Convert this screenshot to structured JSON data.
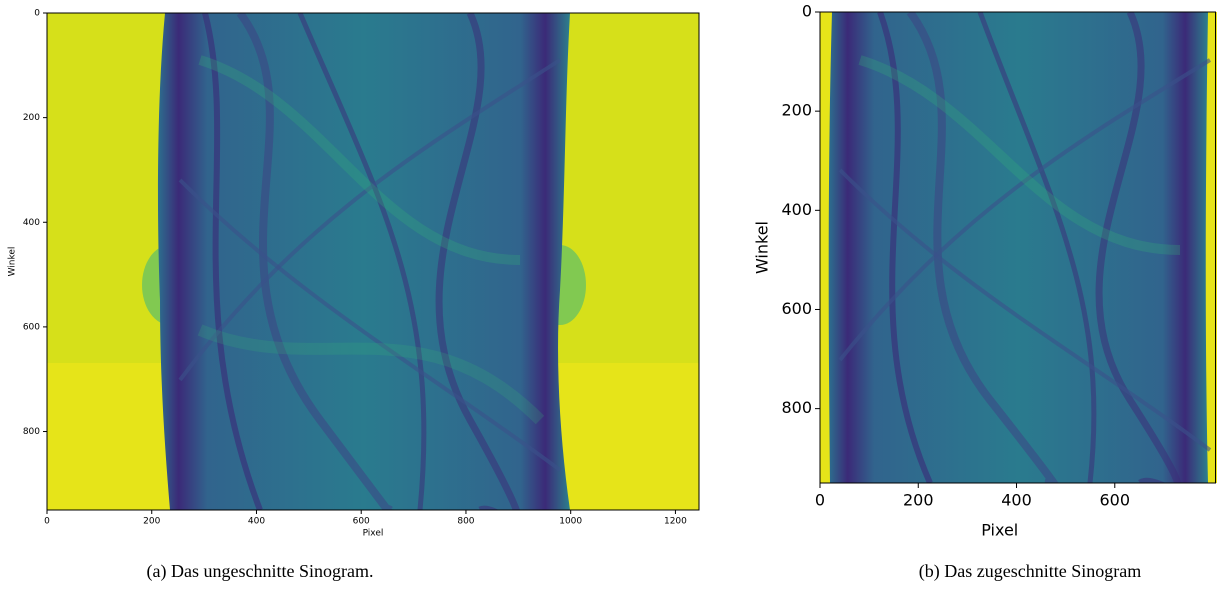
{
  "chart_data": [
    {
      "type": "image",
      "xlabel": "Pixel",
      "ylabel": "Winkel",
      "xlim": [
        0,
        1245
      ],
      "ylim": [
        950,
        0
      ],
      "xticks": [
        0,
        200,
        400,
        600,
        800,
        1000,
        1200
      ],
      "yticks": [
        0,
        200,
        400,
        600,
        800
      ],
      "caption": "(a) Das ungeschnitte Sinogram."
    },
    {
      "type": "image",
      "xlabel": "Pixel",
      "ylabel": "Winkel",
      "xlim": [
        0,
        805
      ],
      "ylim": [
        950,
        0
      ],
      "xticks": [
        0,
        200,
        400,
        600
      ],
      "yticks": [
        0,
        200,
        400,
        600,
        800
      ],
      "caption": "(b) Das zugeschnitte Sinogram"
    }
  ]
}
